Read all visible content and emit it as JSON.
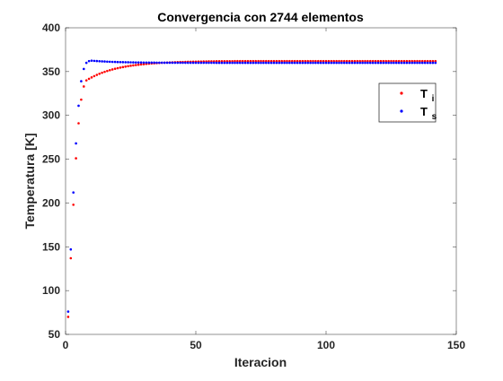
{
  "chart_data": {
    "type": "scatter",
    "title": "Convergencia con 2744 elementos",
    "xlabel": "Iteracion",
    "ylabel": "Temperatura [K]",
    "xlim": [
      0,
      150
    ],
    "ylim": [
      50,
      400
    ],
    "xticks": [
      0,
      50,
      100,
      150
    ],
    "yticks": [
      50,
      100,
      150,
      200,
      250,
      300,
      350,
      400
    ],
    "grid": false,
    "legend_position": "top-right",
    "series": [
      {
        "name": "T_i",
        "label_main": "T",
        "label_sub": "i",
        "color": "#ff0000",
        "model": {
          "start": 70,
          "final": 362,
          "tau": 8,
          "n": 142
        },
        "first_points": [
          {
            "x": 1,
            "y": 70
          },
          {
            "x": 2,
            "y": 137
          },
          {
            "x": 3,
            "y": 198
          },
          {
            "x": 4,
            "y": 251
          },
          {
            "x": 5,
            "y": 291
          },
          {
            "x": 6,
            "y": 318
          },
          {
            "x": 7,
            "y": 333
          },
          {
            "x": 8,
            "y": 340
          }
        ]
      },
      {
        "name": "T_s",
        "label_main": "T",
        "label_sub": "s",
        "color": "#0000ff",
        "model": {
          "final": 360,
          "overshoot": 2.5,
          "n": 142
        },
        "first_points": [
          {
            "x": 1,
            "y": 76
          },
          {
            "x": 2,
            "y": 147
          },
          {
            "x": 3,
            "y": 212
          },
          {
            "x": 4,
            "y": 268
          },
          {
            "x": 5,
            "y": 311
          },
          {
            "x": 6,
            "y": 339
          },
          {
            "x": 7,
            "y": 353
          },
          {
            "x": 8,
            "y": 360
          },
          {
            "x": 9,
            "y": 362
          },
          {
            "x": 10,
            "y": 362.5
          }
        ]
      }
    ]
  }
}
